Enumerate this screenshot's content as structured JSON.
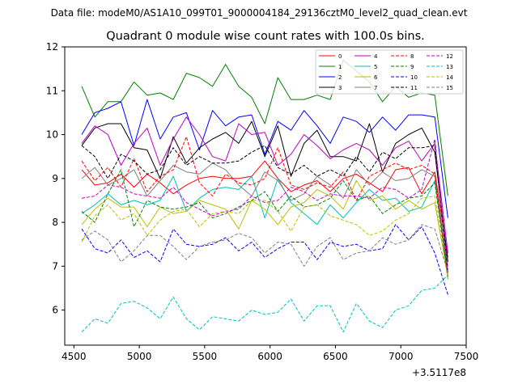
{
  "chart_data": {
    "type": "line",
    "suptitle": "Data file: modeM0/AS1A10_099T01_9000004184_29136cztM0_level2_quad_clean.evt",
    "title": "Quadrant 0 module wise count rates with 100.0s bins.",
    "xlabel": "",
    "ylabel": "",
    "x_offset_label": "+3.5117e8",
    "xlim": [
      4430,
      7500
    ],
    "ylim": [
      5.2,
      12
    ],
    "xticks": [
      "4500",
      "5000",
      "5500",
      "6000",
      "6500",
      "7000",
      "7500"
    ],
    "xtick_values": [
      4500,
      5000,
      5500,
      6000,
      6500,
      7000,
      7500
    ],
    "yticks": [
      "6",
      "7",
      "8",
      "9",
      "10",
      "11",
      "12"
    ],
    "ytick_values": [
      6,
      7,
      8,
      9,
      10,
      11,
      12
    ],
    "legend_position": "top-right",
    "x": [
      4560,
      4660,
      4760,
      4860,
      4960,
      5060,
      5160,
      5260,
      5360,
      5460,
      5560,
      5660,
      5760,
      5860,
      5960,
      6060,
      6160,
      6260,
      6360,
      6460,
      6560,
      6660,
      6760,
      6860,
      6960,
      7060,
      7160,
      7260,
      7360
    ],
    "series": [
      {
        "name": "0",
        "color": "#ff0000",
        "dash": false,
        "values": [
          9.2,
          8.85,
          8.9,
          9.1,
          8.8,
          9.1,
          8.9,
          8.65,
          8.85,
          9.0,
          9.05,
          9.0,
          9.0,
          9.05,
          9.4,
          9.0,
          8.7,
          8.85,
          8.95,
          8.7,
          9.0,
          9.1,
          8.9,
          8.7,
          9.2,
          9.25,
          8.65,
          9.15,
          7.2
        ]
      },
      {
        "name": "1",
        "color": "#008000",
        "dash": false,
        "values": [
          11.1,
          10.4,
          10.75,
          10.75,
          11.2,
          10.9,
          10.95,
          10.8,
          11.4,
          11.3,
          11.1,
          11.6,
          11.1,
          10.85,
          10.25,
          11.3,
          10.8,
          10.8,
          10.9,
          10.8,
          11.7,
          11.45,
          11.2,
          10.75,
          11.1,
          10.85,
          10.95,
          10.9,
          8.6
        ]
      },
      {
        "name": "2",
        "color": "#0000ff",
        "dash": false,
        "values": [
          10.0,
          10.5,
          10.6,
          10.75,
          9.75,
          10.8,
          9.9,
          10.4,
          10.5,
          9.65,
          10.55,
          10.2,
          10.4,
          10.45,
          9.55,
          10.3,
          10.1,
          10.55,
          10.2,
          9.8,
          10.4,
          10.3,
          10.05,
          10.4,
          10.1,
          10.45,
          10.45,
          10.4,
          8.1
        ]
      },
      {
        "name": "3",
        "color": "#000000",
        "dash": false,
        "values": [
          9.75,
          10.15,
          10.25,
          10.25,
          9.7,
          9.65,
          9.0,
          9.95,
          9.35,
          9.7,
          9.9,
          10.05,
          9.8,
          10.3,
          9.5,
          10.2,
          9.05,
          9.8,
          10.1,
          9.5,
          9.5,
          9.4,
          10.25,
          9.15,
          9.8,
          10.0,
          10.15,
          9.6,
          7.1
        ]
      },
      {
        "name": "4",
        "color": "#c000c0",
        "dash": false,
        "values": [
          9.8,
          10.2,
          10.0,
          9.3,
          9.8,
          10.15,
          9.3,
          9.9,
          10.4,
          10.0,
          9.5,
          9.4,
          10.25,
          10.0,
          10.05,
          9.3,
          9.55,
          10.0,
          9.75,
          9.45,
          9.65,
          9.8,
          9.65,
          9.3,
          9.7,
          9.85,
          9.4,
          9.8,
          7.3
        ]
      },
      {
        "name": "5",
        "color": "#00bfbf",
        "dash": false,
        "values": [
          8.2,
          8.4,
          8.65,
          8.4,
          8.5,
          8.4,
          8.5,
          9.05,
          8.25,
          8.55,
          8.75,
          8.8,
          8.75,
          9.05,
          8.1,
          9.0,
          8.45,
          8.2,
          7.95,
          8.4,
          8.1,
          8.45,
          8.75,
          8.5,
          8.55,
          8.25,
          8.35,
          8.95,
          6.85
        ]
      },
      {
        "name": "6",
        "color": "#bfbf00",
        "dash": false,
        "values": [
          7.95,
          8.3,
          8.55,
          8.35,
          8.35,
          7.9,
          8.35,
          8.2,
          8.25,
          8.5,
          8.4,
          8.3,
          7.85,
          8.5,
          8.3,
          7.95,
          8.35,
          8.45,
          8.75,
          8.6,
          8.3,
          8.95,
          8.5,
          8.6,
          8.3,
          8.5,
          8.3,
          8.45,
          6.75
        ]
      },
      {
        "name": "7",
        "color": "#808080",
        "dash": false,
        "values": [
          9.0,
          9.25,
          8.85,
          9.0,
          9.2,
          8.6,
          8.95,
          9.3,
          9.15,
          9.1,
          9.35,
          9.2,
          8.85,
          8.6,
          9.15,
          8.95,
          8.5,
          8.65,
          9.05,
          8.85,
          8.55,
          9.2,
          8.85,
          9.15,
          8.95,
          9.0,
          9.2,
          9.05,
          7.0
        ]
      },
      {
        "name": "8",
        "color": "#ff0000",
        "dash": true,
        "values": [
          9.4,
          8.95,
          9.25,
          8.8,
          9.45,
          8.7,
          9.05,
          9.2,
          9.95,
          8.9,
          8.6,
          9.1,
          8.9,
          8.85,
          9.0,
          9.7,
          8.85,
          8.75,
          8.9,
          8.8,
          9.15,
          8.5,
          9.05,
          9.2,
          9.35,
          9.2,
          9.3,
          9.1,
          6.7
        ]
      },
      {
        "name": "9",
        "color": "#008000",
        "dash": true,
        "values": [
          8.25,
          8.0,
          8.65,
          9.2,
          7.9,
          8.5,
          8.35,
          8.3,
          8.35,
          8.45,
          8.1,
          8.2,
          8.35,
          8.5,
          8.7,
          8.25,
          8.6,
          8.35,
          8.4,
          8.55,
          8.95,
          8.5,
          8.6,
          8.2,
          8.4,
          8.55,
          8.6,
          8.9,
          6.75
        ]
      },
      {
        "name": "10",
        "color": "#0000ff",
        "dash": true,
        "values": [
          7.85,
          7.4,
          7.3,
          7.6,
          7.2,
          7.35,
          7.1,
          7.85,
          7.5,
          7.45,
          7.5,
          7.65,
          7.35,
          7.55,
          7.2,
          7.4,
          7.55,
          7.55,
          7.15,
          7.55,
          7.45,
          7.5,
          7.35,
          7.4,
          7.95,
          7.6,
          7.9,
          7.3,
          6.35
        ]
      },
      {
        "name": "11",
        "color": "#000000",
        "dash": true,
        "values": [
          9.75,
          9.5,
          9.0,
          9.55,
          9.4,
          9.1,
          9.2,
          9.7,
          9.3,
          9.5,
          9.35,
          9.35,
          9.4,
          9.6,
          9.75,
          9.25,
          9.1,
          9.3,
          9.05,
          9.2,
          9.05,
          9.5,
          9.15,
          9.6,
          9.45,
          9.7,
          9.7,
          9.75,
          6.85
        ]
      },
      {
        "name": "12",
        "color": "#c000c0",
        "dash": true,
        "values": [
          8.55,
          8.6,
          8.85,
          8.8,
          8.65,
          8.6,
          8.55,
          8.8,
          8.45,
          8.3,
          8.15,
          8.25,
          8.3,
          8.6,
          8.45,
          8.5,
          8.8,
          8.7,
          8.5,
          8.65,
          8.6,
          8.6,
          8.55,
          8.8,
          8.75,
          8.55,
          8.75,
          9.9,
          6.85
        ]
      },
      {
        "name": "13",
        "color": "#00bfbf",
        "dash": true,
        "values": [
          5.5,
          5.8,
          5.7,
          6.15,
          6.2,
          6.05,
          5.8,
          6.3,
          5.8,
          5.55,
          5.85,
          5.8,
          5.75,
          6.0,
          5.9,
          5.95,
          6.25,
          5.75,
          6.1,
          6.1,
          5.5,
          6.15,
          5.75,
          5.6,
          6.0,
          6.1,
          6.45,
          6.5,
          6.8
        ]
      },
      {
        "name": "14",
        "color": "#bfbf00",
        "dash": true,
        "values": [
          7.55,
          8.15,
          8.4,
          8.05,
          8.2,
          7.7,
          8.05,
          8.25,
          8.3,
          7.9,
          8.2,
          8.25,
          8.2,
          8.5,
          8.5,
          8.25,
          7.8,
          8.35,
          8.4,
          8.15,
          8.05,
          7.95,
          7.7,
          7.8,
          8.05,
          8.2,
          8.55,
          8.6,
          6.7
        ]
      },
      {
        "name": "15",
        "color": "#808080",
        "dash": true,
        "values": [
          7.6,
          7.8,
          7.6,
          7.1,
          7.35,
          7.7,
          7.7,
          7.45,
          7.15,
          7.45,
          7.55,
          7.6,
          7.75,
          7.65,
          7.3,
          7.55,
          7.5,
          7.0,
          7.45,
          7.65,
          7.15,
          7.3,
          7.35,
          7.65,
          7.5,
          7.6,
          7.95,
          7.85,
          6.85
        ]
      }
    ]
  }
}
